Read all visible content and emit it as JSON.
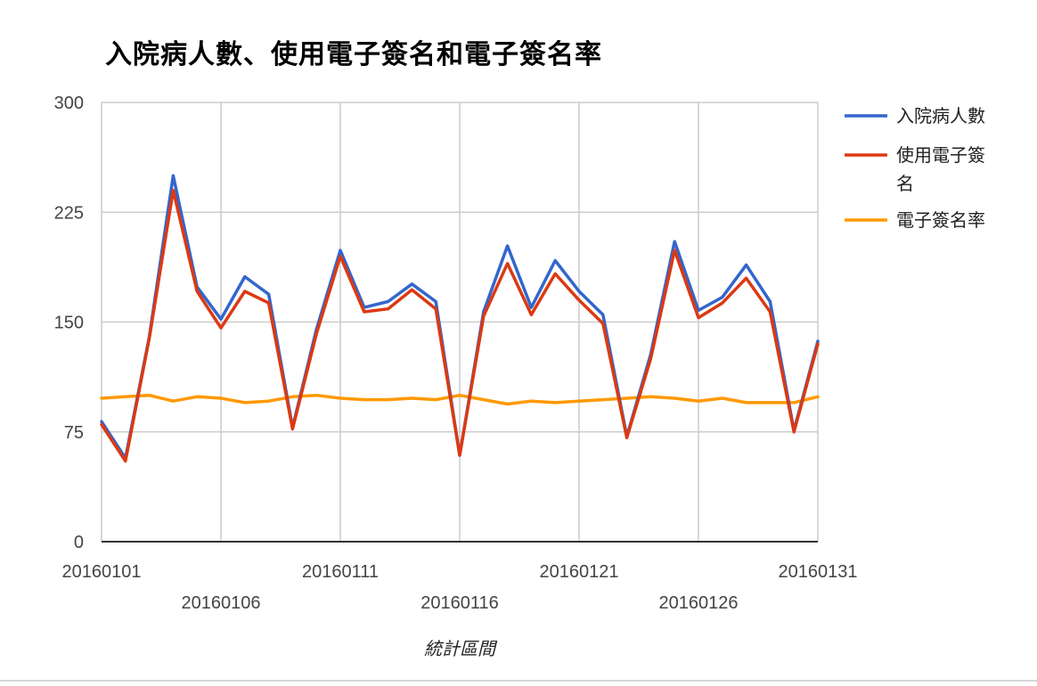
{
  "chart_data": {
    "type": "line",
    "title": "入院病人數、使用電子簽名和電子簽名率",
    "xlabel": "統計區間",
    "ylabel": "",
    "ylim": [
      0,
      300
    ],
    "yticks": [
      0,
      75,
      150,
      225,
      300
    ],
    "x": [
      "20160101",
      "20160102",
      "20160103",
      "20160104",
      "20160105",
      "20160106",
      "20160107",
      "20160108",
      "20160109",
      "20160110",
      "20160111",
      "20160112",
      "20160113",
      "20160114",
      "20160115",
      "20160116",
      "20160117",
      "20160118",
      "20160119",
      "20160120",
      "20160121",
      "20160122",
      "20160123",
      "20160124",
      "20160125",
      "20160126",
      "20160127",
      "20160128",
      "20160129",
      "20160130",
      "20160131"
    ],
    "xtick_labels_row1": [
      "20160101",
      "20160111",
      "20160121",
      "20160131"
    ],
    "xtick_labels_row2": [
      "20160106",
      "20160116",
      "20160126"
    ],
    "grid": true,
    "legend_position": "right",
    "series": [
      {
        "name": "入院病人數",
        "color": "#3366cc",
        "values": [
          82,
          57,
          140,
          250,
          174,
          152,
          181,
          169,
          78,
          145,
          199,
          160,
          164,
          176,
          164,
          59,
          157,
          202,
          160,
          192,
          171,
          155,
          72,
          128,
          205,
          158,
          167,
          189,
          164,
          76,
          137
        ]
      },
      {
        "name": "使用電子簽名",
        "color": "#dc3912",
        "values": [
          80,
          55,
          139,
          240,
          171,
          146,
          171,
          163,
          77,
          142,
          195,
          157,
          159,
          172,
          159,
          59,
          154,
          190,
          155,
          183,
          165,
          149,
          71,
          125,
          199,
          153,
          163,
          180,
          157,
          75,
          135
        ]
      },
      {
        "name": "電子簽名率",
        "color": "#ff9900",
        "values": [
          98,
          99,
          100,
          96,
          99,
          98,
          95,
          96,
          99,
          100,
          98,
          97,
          97,
          98,
          97,
          100,
          97,
          94,
          96,
          95,
          96,
          97,
          98,
          99,
          98,
          96,
          98,
          95,
          95,
          95,
          99
        ]
      }
    ]
  }
}
